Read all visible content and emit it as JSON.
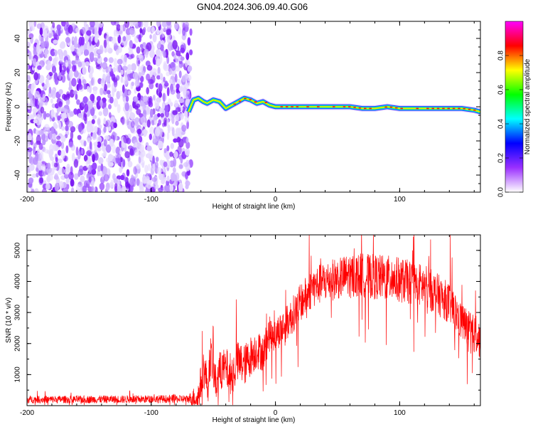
{
  "title": "GN04.2024.306.09.40.G06",
  "chart_data": [
    {
      "type": "heatmap",
      "xlabel": "Height of straight line (km)",
      "ylabel": "Frequency (Hz)",
      "xlim": [
        -200,
        165
      ],
      "ylim": [
        -50,
        50
      ],
      "xticks": [
        -200,
        -100,
        0,
        100
      ],
      "yticks": [
        -40,
        -20,
        0,
        20,
        40
      ],
      "colorbar": {
        "label": "Normalized spectral amplitude",
        "range": [
          0,
          1
        ],
        "ticks": [
          "0.0",
          "0.2",
          "0.4",
          "0.6",
          "0.8"
        ],
        "colors": [
          "#ffffff",
          "#9b30ff",
          "#0000ff",
          "#00ffff",
          "#00ff00",
          "#ffff00",
          "#ff0000",
          "#ff00ff"
        ]
      },
      "noise_region": {
        "x": [
          -200,
          -68
        ],
        "ylim": [
          -50,
          50
        ]
      },
      "ridge": {
        "x": [
          -70,
          -66,
          -62,
          -58,
          -55,
          -50,
          -45,
          -40,
          -35,
          -30,
          -25,
          -20,
          -15,
          -10,
          -5,
          0,
          10,
          20,
          30,
          40,
          50,
          60,
          70,
          80,
          90,
          100,
          110,
          120,
          130,
          140,
          150,
          160,
          165
        ],
        "y": [
          -3,
          4,
          5,
          3,
          2,
          4,
          3,
          -1,
          1,
          3,
          5,
          4,
          2,
          3,
          1,
          0,
          0,
          0,
          0,
          0,
          0,
          0,
          -1,
          -1,
          0,
          -1,
          -1,
          -1,
          -1,
          -1,
          -1,
          -2,
          -3
        ]
      }
    },
    {
      "type": "line",
      "xlabel": "Height of straight line (km)",
      "ylabel": "SNR (10 * v/v)",
      "xlim": [
        -200,
        165
      ],
      "ylim": [
        0,
        5500
      ],
      "xticks": [
        -200,
        -100,
        0,
        100
      ],
      "yticks": [
        1000,
        2000,
        3000,
        4000,
        5000
      ],
      "color": "#ff0000",
      "trend": {
        "x": [
          -200,
          -150,
          -100,
          -70,
          -62,
          -58,
          -55,
          -52,
          -48,
          -45,
          -40,
          -35,
          -30,
          -25,
          -20,
          -15,
          -10,
          -5,
          0,
          5,
          10,
          20,
          30,
          40,
          50,
          60,
          70,
          80,
          90,
          100,
          110,
          120,
          130,
          140,
          150,
          160,
          165
        ],
        "y": [
          200,
          200,
          210,
          220,
          300,
          1200,
          800,
          1600,
          700,
          1100,
          1200,
          1000,
          1400,
          1300,
          1600,
          1800,
          1700,
          2300,
          2300,
          2500,
          2700,
          3300,
          3800,
          4000,
          4100,
          4200,
          4200,
          4150,
          4100,
          4050,
          3950,
          3850,
          3600,
          3300,
          2700,
          2300,
          2100
        ]
      },
      "spike_amplitude": {
        "x": [
          -200,
          -70,
          -60,
          -30,
          0,
          30,
          60,
          90,
          120,
          165
        ],
        "y": [
          120,
          130,
          600,
          700,
          550,
          650,
          700,
          750,
          700,
          600
        ]
      }
    }
  ]
}
